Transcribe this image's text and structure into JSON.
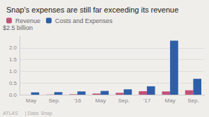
{
  "chart_data": {
    "type": "bar",
    "title": "Snap's expenses are still far exceeding its revenue",
    "ylabel": "$2.5 billion",
    "categories": [
      "May",
      "Sep.",
      "’16",
      "May",
      "Sep.",
      "’17",
      "May",
      "Sep."
    ],
    "series": [
      {
        "name": "Revenue",
        "color": "#c0527a",
        "values": [
          0.0,
          0.01,
          0.02,
          0.05,
          0.08,
          0.15,
          0.14,
          0.19
        ]
      },
      {
        "name": "Costs and Expenses",
        "color": "#2d5fa8",
        "values": [
          0.1,
          0.11,
          0.14,
          0.16,
          0.23,
          0.36,
          2.31,
          0.68
        ]
      }
    ],
    "ylim": [
      0,
      2.5
    ],
    "yticks": [
      {
        "value": 0,
        "label": "0.0"
      },
      0.5,
      {
        "value": 1,
        "label": "1.0"
      },
      1.5,
      {
        "value": 2,
        "label": "2.0"
      }
    ],
    "grid": true,
    "legend": "upper left",
    "annotations": [
      "ATLAS",
      "| Data: Snap"
    ]
  }
}
